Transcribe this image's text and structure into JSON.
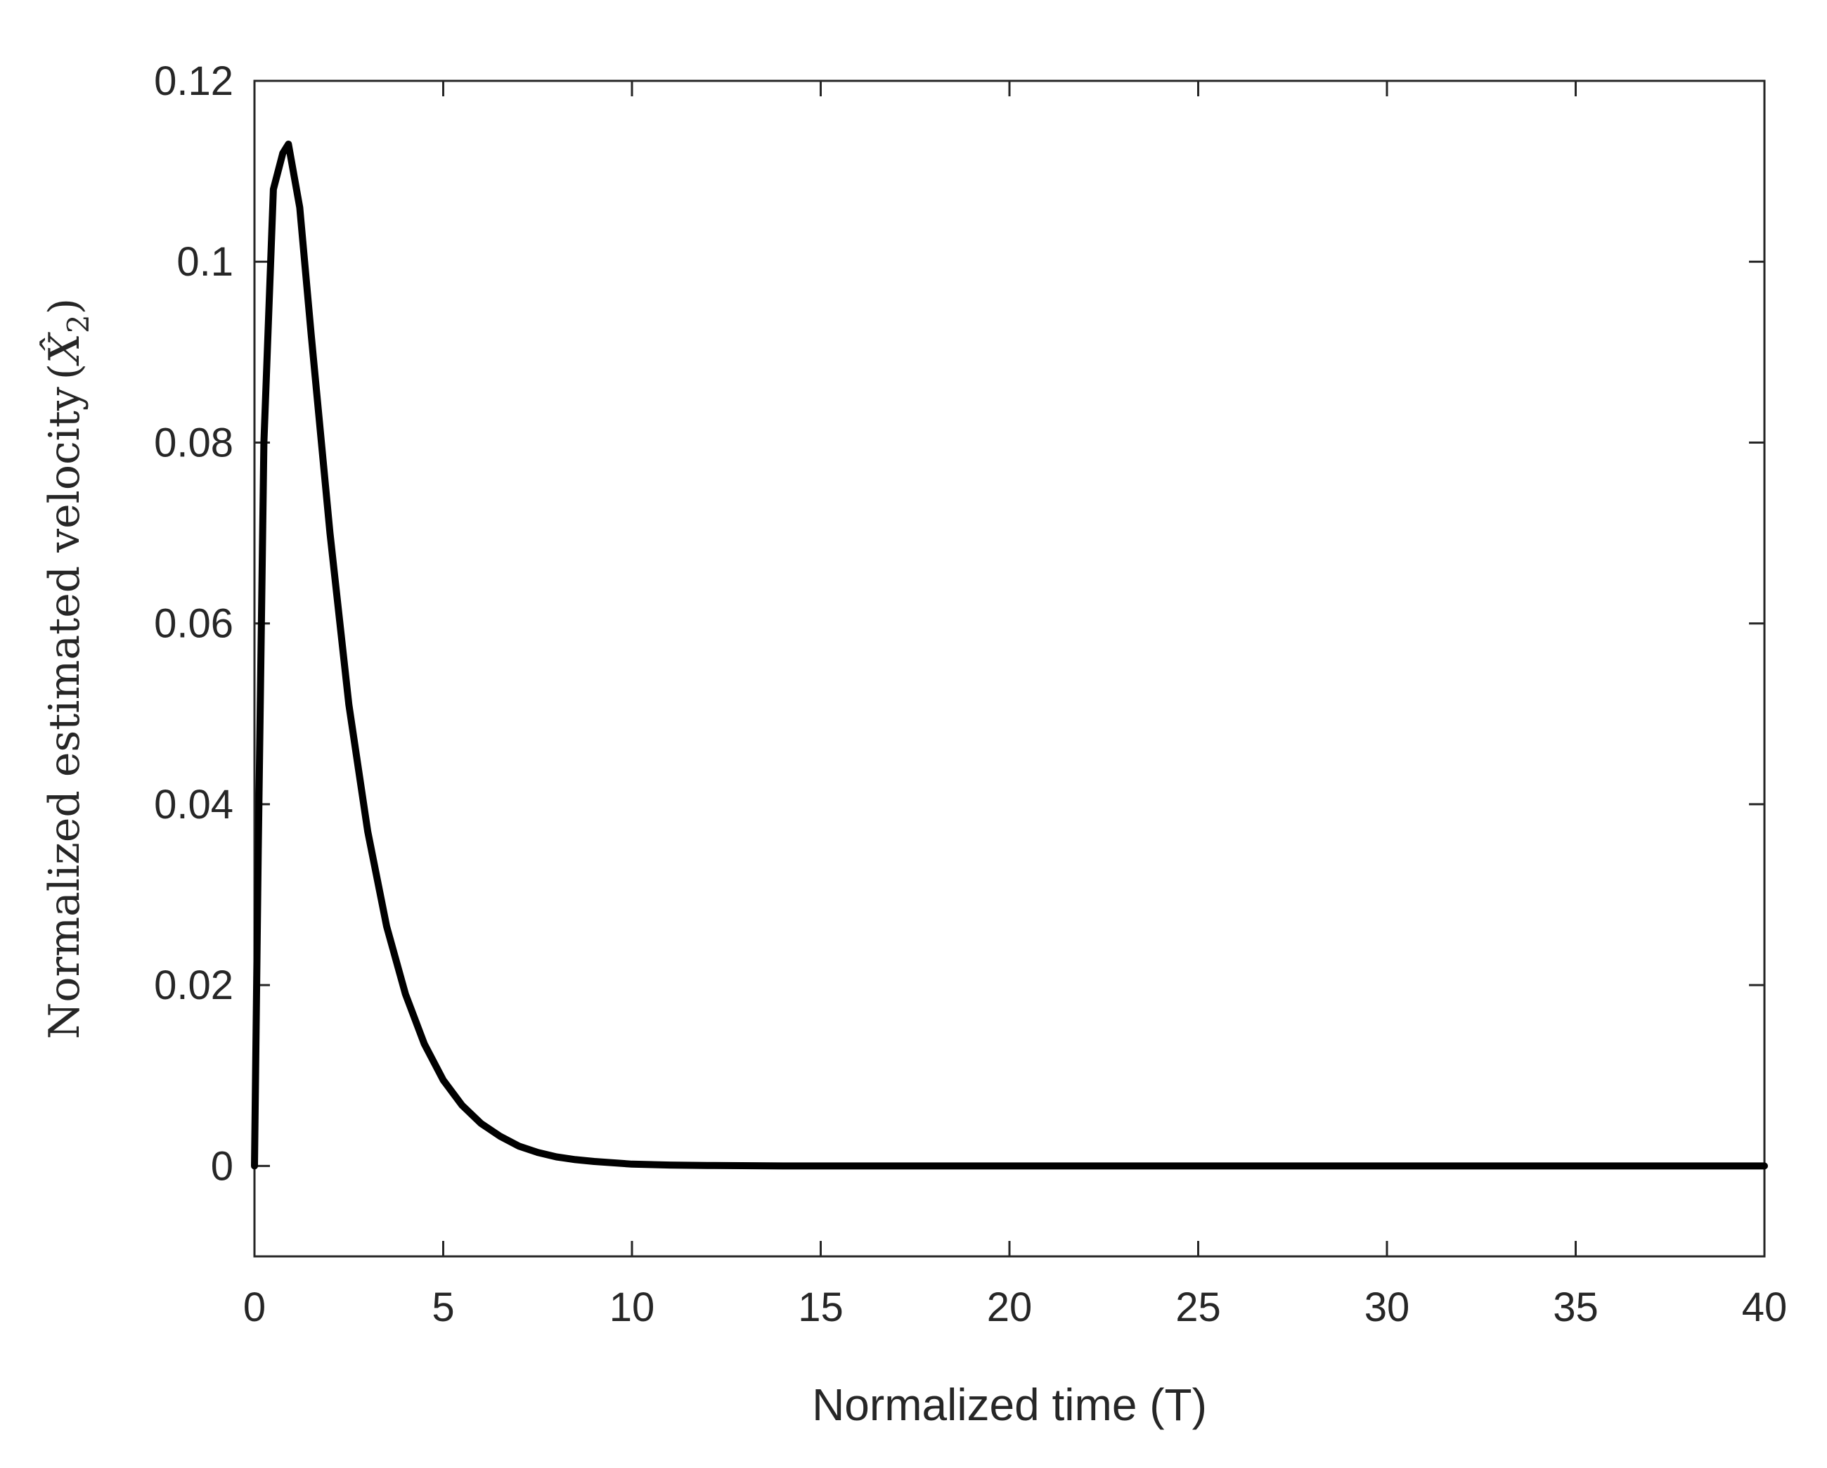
{
  "chart_data": {
    "type": "line",
    "title": "",
    "xlabel": "Normalized time (T)",
    "ylabel": "Normalized estimated velocity",
    "ylabel_symbol": "X̂",
    "ylabel_subscript": "2",
    "xlim": [
      0,
      40
    ],
    "ylim": [
      -0.01,
      0.12
    ],
    "xticks": [
      "0",
      "5",
      "10",
      "15",
      "20",
      "25",
      "30",
      "35",
      "40"
    ],
    "xtick_values": [
      0,
      5,
      10,
      15,
      20,
      25,
      30,
      35,
      40
    ],
    "yticks": [
      "0",
      "0.02",
      "0.04",
      "0.06",
      "0.08",
      "0.1",
      "0.12"
    ],
    "ytick_values": [
      0,
      0.02,
      0.04,
      0.06,
      0.08,
      0.1,
      0.12
    ],
    "grid": false,
    "line_color": "#000000",
    "series": [
      {
        "x": [
          0,
          0.1,
          0.25,
          0.5,
          0.75,
          0.9,
          1.2,
          1.5,
          2,
          2.5,
          3,
          3.5,
          4,
          4.5,
          5,
          5.5,
          6,
          6.5,
          7,
          7.5,
          8,
          8.5,
          9,
          10,
          11,
          12,
          14,
          16,
          20,
          25,
          30,
          35,
          40
        ],
        "y": [
          0,
          0.035,
          0.08,
          0.108,
          0.112,
          0.113,
          0.106,
          0.092,
          0.07,
          0.051,
          0.037,
          0.0265,
          0.019,
          0.0135,
          0.0095,
          0.0067,
          0.0047,
          0.0033,
          0.0022,
          0.0015,
          0.001,
          0.0007,
          0.0005,
          0.0002,
          0.0001,
          5e-05,
          0,
          0,
          0,
          0,
          0,
          0,
          0
        ]
      }
    ]
  }
}
